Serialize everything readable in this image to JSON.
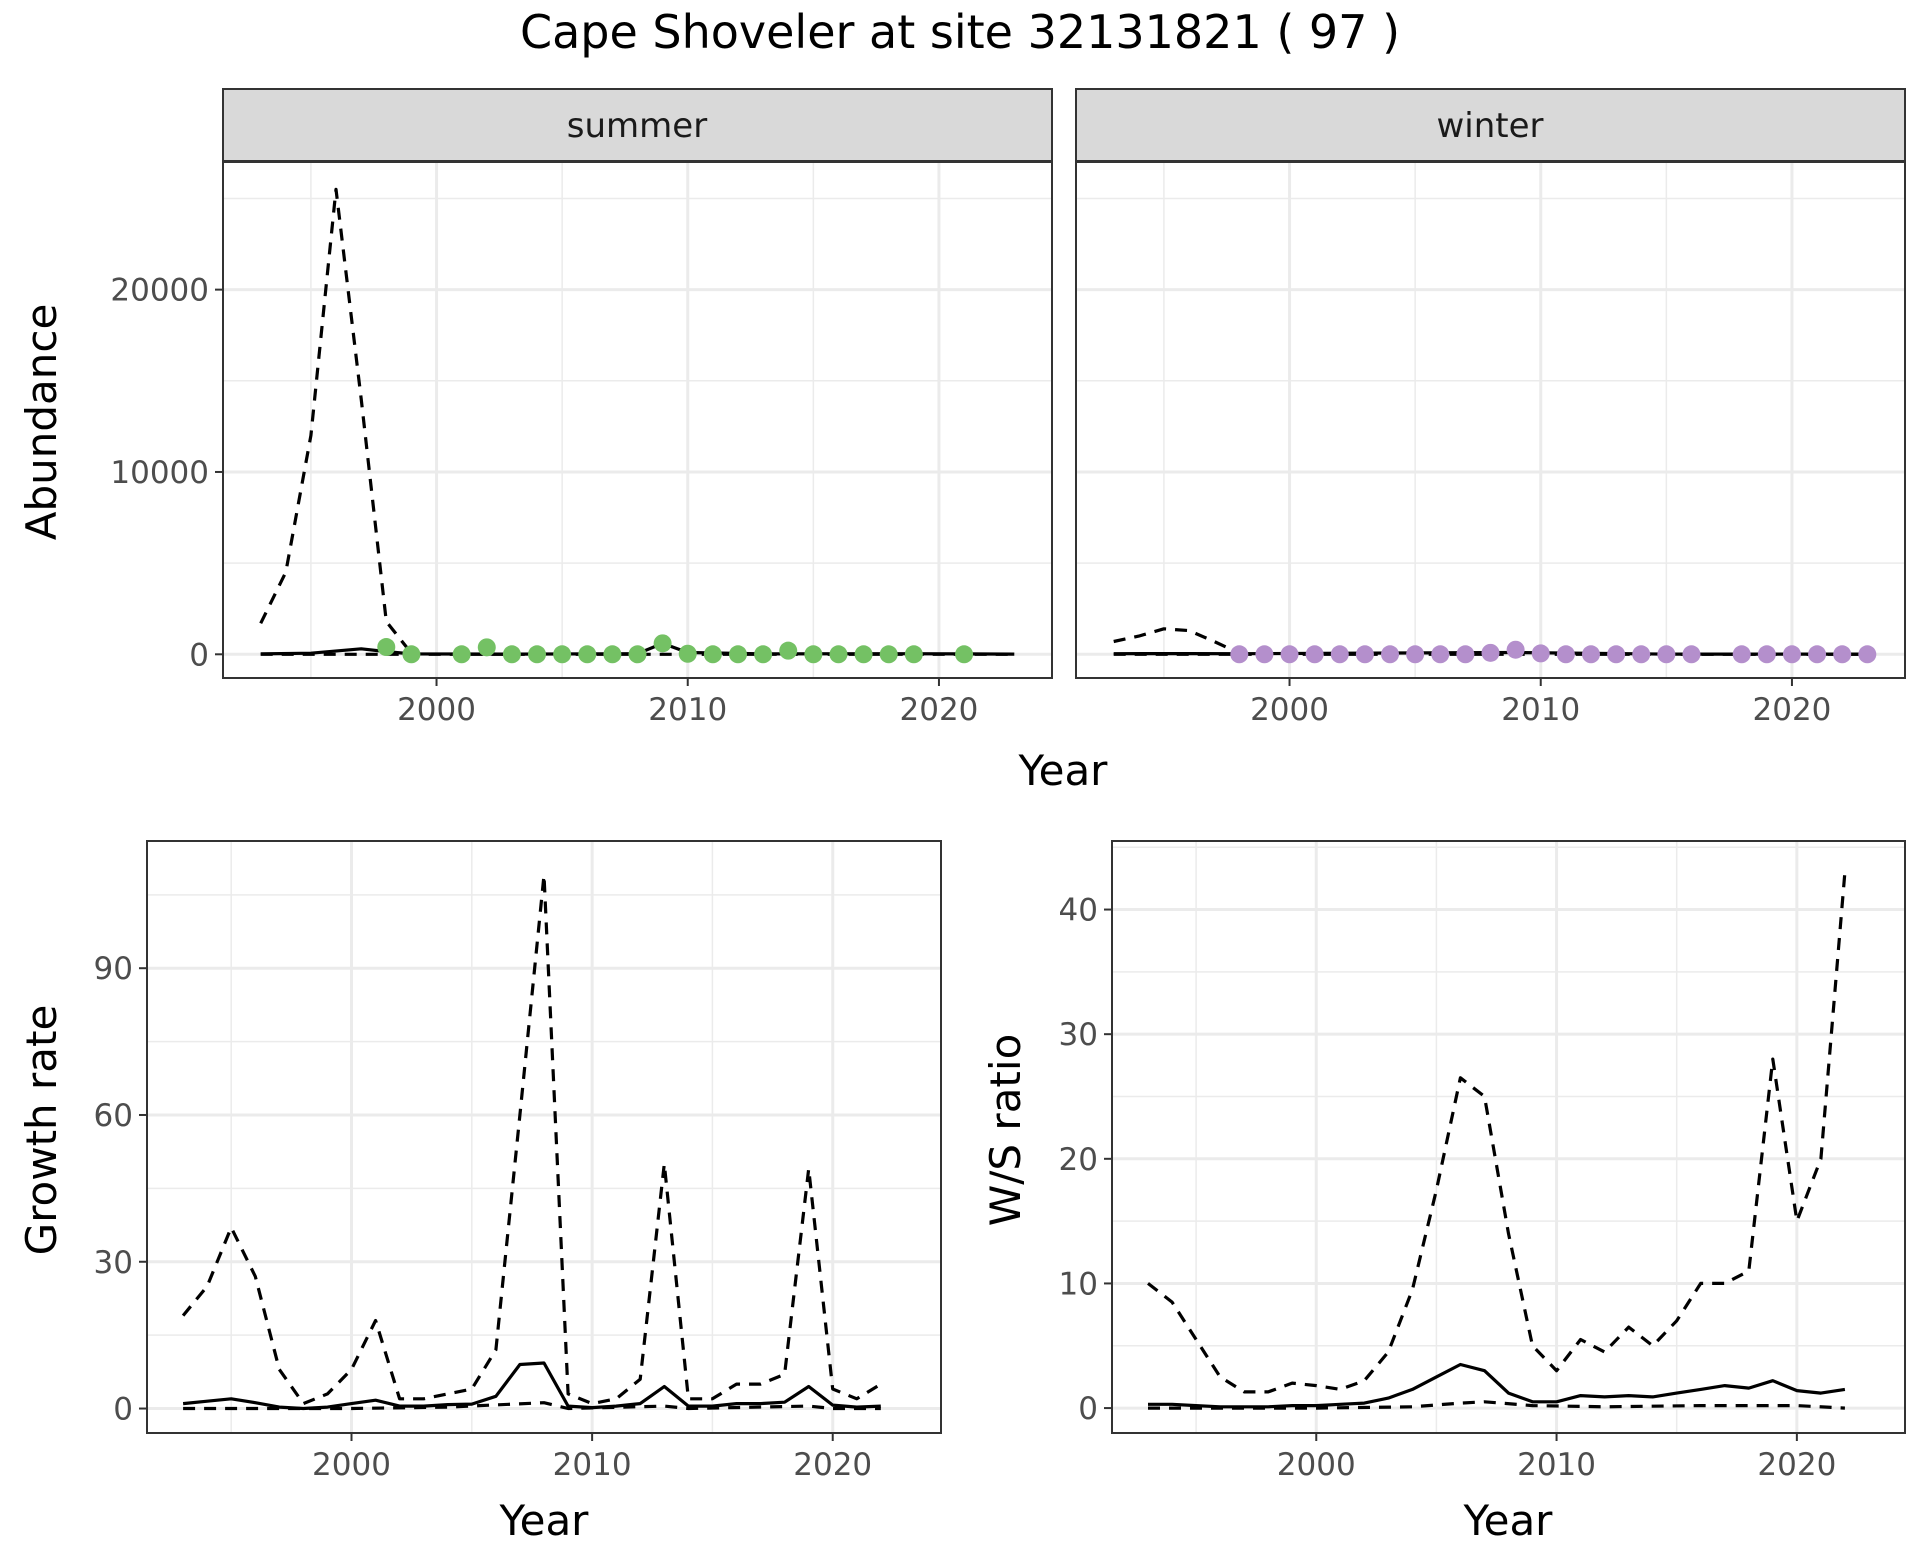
{
  "figure": {
    "title": "Cape Shoveler at site 32131821 ( 97 )"
  },
  "colors": {
    "summer_points": "#74c164",
    "winter_points": "#b48fcc",
    "line": "#000000",
    "strip_fill": "#d9d9d9",
    "grid": "#ebebeb"
  },
  "chart_data": [
    {
      "id": "abundance",
      "type": "line",
      "title": "",
      "xlabel": "Year",
      "ylabel": "Abundance",
      "xlim": [
        1991.5,
        2024.5
      ],
      "ylim": [
        -1300,
        27000
      ],
      "x_ticks": [
        2000,
        2010,
        2020
      ],
      "y_ticks": [
        0,
        10000,
        20000
      ],
      "x_tick_labels": [
        "2000",
        "2010",
        "2020"
      ],
      "y_tick_labels": [
        "0",
        "10000",
        "20000"
      ],
      "grid": true,
      "panels": [
        {
          "name": "summer",
          "series": [
            {
              "style": "dashed",
              "x": [
                1993,
                1994,
                1995,
                1996,
                1997,
                1998,
                1999
              ],
              "y": [
                1700,
                4500,
                12000,
                25500,
                14000,
                1800,
                60
              ]
            },
            {
              "style": "solid",
              "x": [
                1993,
                1995,
                1997,
                1998,
                1999,
                2003,
                2008,
                2009,
                2010,
                2013,
                2018,
                2021,
                2023
              ],
              "y": [
                20,
                60,
                300,
                150,
                20,
                10,
                30,
                600,
                100,
                20,
                30,
                20,
                10
              ]
            },
            {
              "style": "dashed",
              "x": [
                1993,
                1997,
                2023
              ],
              "y": [
                0,
                0,
                0
              ]
            }
          ],
          "points": {
            "x": [
              1998,
              1999,
              2001,
              2002,
              2003,
              2004,
              2005,
              2006,
              2007,
              2008,
              2009,
              2010,
              2011,
              2012,
              2013,
              2014,
              2015,
              2016,
              2017,
              2018,
              2019,
              2021
            ],
            "y": [
              400,
              0,
              0,
              380,
              0,
              0,
              0,
              0,
              0,
              0,
              600,
              30,
              0,
              0,
              0,
              200,
              0,
              0,
              0,
              0,
              0,
              0
            ]
          }
        },
        {
          "name": "winter",
          "series": [
            {
              "style": "dashed",
              "x": [
                1993,
                1994,
                1995,
                1996,
                1997,
                1998
              ],
              "y": [
                700,
                1000,
                1400,
                1300,
                700,
                60
              ]
            },
            {
              "style": "solid",
              "x": [
                1993,
                1996,
                1998,
                2009,
                2015,
                2023
              ],
              "y": [
                30,
                40,
                30,
                100,
                10,
                10
              ]
            },
            {
              "style": "dashed",
              "x": [
                1993,
                2023
              ],
              "y": [
                0,
                0
              ]
            }
          ],
          "points": {
            "x": [
              1998,
              1999,
              2000,
              2001,
              2002,
              2003,
              2004,
              2005,
              2006,
              2007,
              2008,
              2009,
              2010,
              2011,
              2012,
              2013,
              2014,
              2015,
              2016,
              2018,
              2019,
              2020,
              2021,
              2022,
              2023
            ],
            "y": [
              0,
              0,
              0,
              0,
              0,
              0,
              0,
              0,
              0,
              0,
              80,
              250,
              50,
              0,
              0,
              0,
              0,
              0,
              0,
              0,
              0,
              0,
              0,
              0,
              0
            ]
          }
        }
      ]
    },
    {
      "id": "growth",
      "type": "line",
      "title": "",
      "xlabel": "Year",
      "ylabel": "Growth rate",
      "xlim": [
        1991.5,
        2024.5
      ],
      "ylim": [
        -5,
        116
      ],
      "x_ticks": [
        2000,
        2010,
        2020
      ],
      "y_ticks": [
        0,
        30,
        60,
        90
      ],
      "x_tick_labels": [
        "2000",
        "2010",
        "2020"
      ],
      "y_tick_labels": [
        "0",
        "30",
        "60",
        "90"
      ],
      "grid": true,
      "series": [
        {
          "style": "dashed",
          "x": [
            1993,
            1994,
            1995,
            1996,
            1997,
            1998,
            1999,
            2000,
            2001,
            2002,
            2003,
            2004,
            2005,
            2006,
            2007,
            2008,
            2009,
            2010,
            2011,
            2012,
            2013,
            2014,
            2015,
            2016,
            2017,
            2018,
            2019,
            2020,
            2021,
            2022
          ],
          "y": [
            19,
            25,
            37,
            27,
            8,
            1,
            3,
            8,
            18,
            2,
            2,
            3,
            4,
            12,
            60,
            109,
            3,
            1,
            2,
            6,
            50,
            2,
            2,
            5,
            5,
            7,
            49,
            4,
            2,
            5
          ]
        },
        {
          "style": "solid",
          "x": [
            1993,
            1994,
            1995,
            1996,
            1997,
            1998,
            1999,
            2000,
            2001,
            2002,
            2003,
            2004,
            2005,
            2006,
            2007,
            2008,
            2009,
            2010,
            2011,
            2012,
            2013,
            2014,
            2015,
            2016,
            2017,
            2018,
            2019,
            2020,
            2021,
            2022
          ],
          "y": [
            1,
            1.5,
            2,
            1.2,
            0.3,
            0,
            0.3,
            1,
            1.7,
            0.5,
            0.5,
            0.8,
            0.9,
            2.5,
            9,
            9.3,
            0.5,
            0.2,
            0.5,
            1,
            4.5,
            0.5,
            0.5,
            1,
            1,
            1.3,
            4.5,
            0.7,
            0.3,
            0.5
          ]
        },
        {
          "style": "dashed",
          "x": [
            1993,
            1996,
            2000,
            2004,
            2008,
            2009,
            2013,
            2014,
            2019,
            2020,
            2022
          ],
          "y": [
            0,
            0,
            0,
            0.3,
            1.2,
            0,
            0.5,
            0,
            0.5,
            0,
            0
          ]
        }
      ]
    },
    {
      "id": "ratio",
      "type": "line",
      "title": "",
      "xlabel": "Year",
      "ylabel": "W/S ratio",
      "xlim": [
        1991.5,
        2024.5
      ],
      "ylim": [
        -2,
        45.5
      ],
      "x_ticks": [
        2000,
        2010,
        2020
      ],
      "y_ticks": [
        0,
        10,
        20,
        30,
        40
      ],
      "x_tick_labels": [
        "2000",
        "2010",
        "2020"
      ],
      "y_tick_labels": [
        "0",
        "10",
        "20",
        "30",
        "40"
      ],
      "grid": true,
      "series": [
        {
          "style": "dashed",
          "x": [
            1993,
            1994,
            1995,
            1996,
            1997,
            1998,
            1999,
            2000,
            2001,
            2002,
            2003,
            2004,
            2005,
            2006,
            2007,
            2008,
            2009,
            2010,
            2011,
            2012,
            2013,
            2014,
            2015,
            2016,
            2017,
            2018,
            2019,
            2020,
            2021,
            2022
          ],
          "y": [
            10,
            8.5,
            5.5,
            2.5,
            1.3,
            1.3,
            2,
            1.8,
            1.5,
            2.2,
            4.5,
            9.5,
            17.5,
            26.5,
            25,
            14,
            5,
            3,
            5.5,
            4.5,
            6.5,
            5,
            7,
            10,
            10,
            11,
            28,
            15,
            20,
            43
          ]
        },
        {
          "style": "solid",
          "x": [
            1993,
            1994,
            1995,
            1996,
            1997,
            1998,
            1999,
            2000,
            2001,
            2002,
            2003,
            2004,
            2005,
            2006,
            2007,
            2008,
            2009,
            2010,
            2011,
            2012,
            2013,
            2014,
            2015,
            2016,
            2017,
            2018,
            2019,
            2020,
            2021,
            2022
          ],
          "y": [
            0.3,
            0.3,
            0.2,
            0.1,
            0.1,
            0.1,
            0.2,
            0.2,
            0.3,
            0.4,
            0.8,
            1.5,
            2.5,
            3.5,
            3,
            1.2,
            0.5,
            0.5,
            1,
            0.9,
            1,
            0.9,
            1.2,
            1.5,
            1.8,
            1.6,
            2.2,
            1.4,
            1.2,
            1.5
          ]
        },
        {
          "style": "dashed",
          "x": [
            1993,
            1996,
            2000,
            2004,
            2006,
            2007,
            2009,
            2012,
            2016,
            2020,
            2022
          ],
          "y": [
            0,
            0,
            0,
            0.1,
            0.4,
            0.5,
            0.2,
            0.1,
            0.2,
            0.2,
            0
          ]
        }
      ]
    }
  ]
}
